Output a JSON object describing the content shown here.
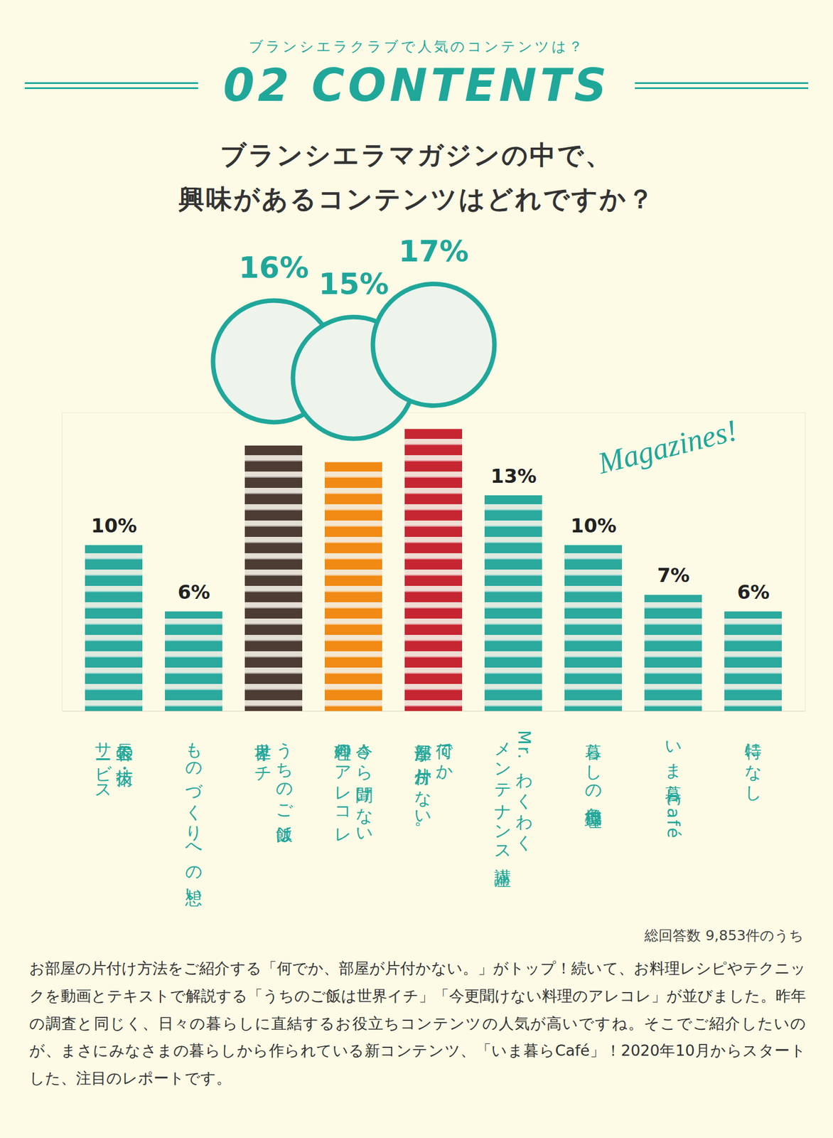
{
  "chart_data": {
    "type": "bar",
    "subtitle": "ブランシエラクラブで人気のコンテンツは？",
    "annotations": [
      "02 CONTENTS",
      "Magazines!",
      "総回答数 9,853件のうち"
    ],
    "title": "ブランシエラマガジンの中で、\n興味があるコンテンツはどれですか？",
    "categories": [
      "長谷工の技術・\nサービス",
      "ものづくりへの想い",
      "うちのご飯は\n世界イチ",
      "今さら聞けない\n料理のアレコレ",
      "何でか、\n部屋が片付かない。",
      "Mr.わくわく\nメンテナンス講座",
      "暮らしの危機管理",
      "いま暮らCafé",
      "特になし"
    ],
    "values": [
      10,
      6,
      16,
      15,
      17,
      13,
      10,
      7,
      6
    ],
    "value_labels": [
      "10%",
      "6%",
      "16%",
      "15%",
      "17%",
      "13%",
      "10%",
      "7%",
      "6%"
    ],
    "colors": [
      "#2aa99c",
      "#2aa99c",
      "#4d3c34",
      "#f08a14",
      "#c62631",
      "#2aa99c",
      "#2aa99c",
      "#2aa99c",
      "#2aa99c"
    ],
    "ylim": [
      0,
      18
    ],
    "data_labels": true,
    "tick_labels": "x",
    "caption": "お部屋の片付け方法をご紹介する「何でか、部屋が片付かない。」がトップ！続いて、お料理レシピやテクニックを動画とテキストで解説する「うちのご飯は世界イチ」「今更聞けない料理のアレコレ」が並びました。昨年の調査と同じく、日々の暮らしに直結するお役立ちコンテンツの人気が高いですね。そこでご紹介したいのが、まさにみなさまの暮らしから作られている新コンテンツ、「いま暮らCafé」！2020年10月からスタートした、注目のレポートです。"
  }
}
